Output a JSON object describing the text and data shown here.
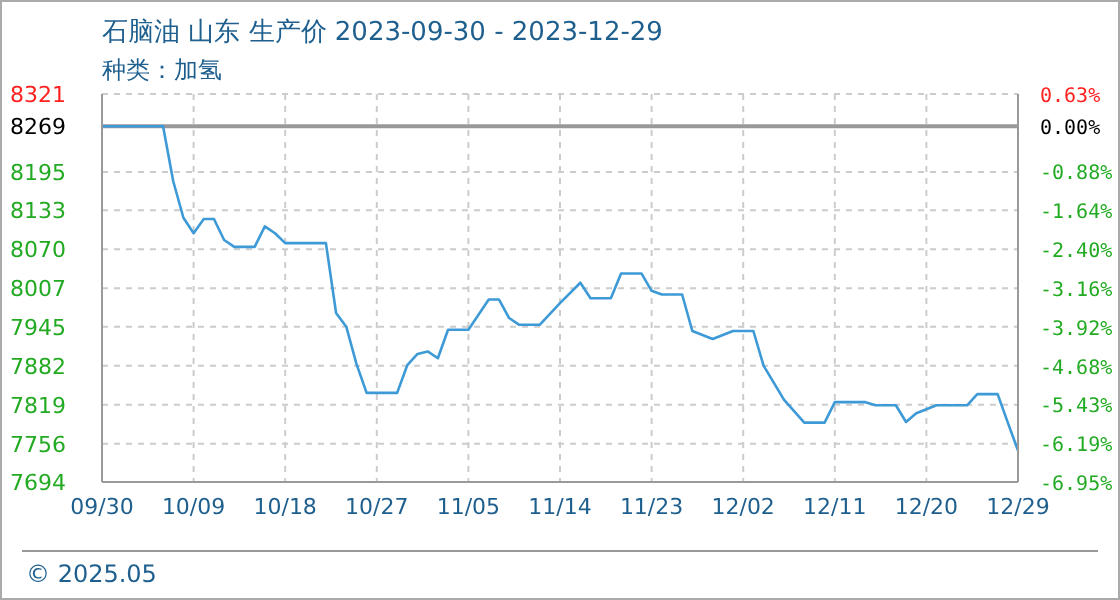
{
  "chart_data": {
    "type": "line",
    "title": "石脑油 山东 生产价 2023-09-30 - 2023-12-29",
    "subtitle": "种类：加氢",
    "annotations": [
      "© 2025.05"
    ],
    "x": [
      "2023-09-30",
      "2023-10-06",
      "2023-10-07",
      "2023-10-08",
      "2023-10-09",
      "2023-10-10",
      "2023-10-11",
      "2023-10-12",
      "2023-10-13",
      "2023-10-15",
      "2023-10-16",
      "2023-10-17",
      "2023-10-18",
      "2023-10-22",
      "2023-10-23",
      "2023-10-24",
      "2023-10-25",
      "2023-10-26",
      "2023-10-29",
      "2023-10-30",
      "2023-10-31",
      "2023-11-01",
      "2023-11-02",
      "2023-11-03",
      "2023-11-05",
      "2023-11-07",
      "2023-11-08",
      "2023-11-09",
      "2023-11-10",
      "2023-11-12",
      "2023-11-14",
      "2023-11-16",
      "2023-11-17",
      "2023-11-19",
      "2023-11-20",
      "2023-11-22",
      "2023-11-23",
      "2023-11-24",
      "2023-11-26",
      "2023-11-27",
      "2023-11-29",
      "2023-12-01",
      "2023-12-03",
      "2023-12-04",
      "2023-12-06",
      "2023-12-08",
      "2023-12-10",
      "2023-12-11",
      "2023-12-14",
      "2023-12-15",
      "2023-12-17",
      "2023-12-18",
      "2023-12-19",
      "2023-12-21",
      "2023-12-24",
      "2023-12-25",
      "2023-12-27",
      "2023-12-28",
      "2023-12-29"
    ],
    "series": [
      {
        "color": "#3d9ad6",
        "values": [
          8269,
          8269,
          8180,
          8121,
          8096,
          8119,
          8119,
          8085,
          8074,
          8074,
          8107,
          8096,
          8080,
          8080,
          7967,
          7945,
          7885,
          7838,
          7838,
          7883,
          7901,
          7905,
          7894,
          7940,
          7940,
          7989,
          7989,
          7959,
          7948,
          7948,
          7983,
          8016,
          7991,
          7991,
          8031,
          8031,
          8003,
          7997,
          7997,
          7938,
          7925,
          7938,
          7938,
          7882,
          7827,
          7790,
          7790,
          7823,
          7823,
          7818,
          7818,
          7791,
          7805,
          7818,
          7818,
          7836,
          7836,
          7790,
          7745
        ]
      }
    ],
    "xlim": [
      "2023-09-30",
      "2023-12-29"
    ],
    "xticks": [
      {
        "value": "2023-09-30",
        "label": "09/30"
      },
      {
        "value": "2023-10-09",
        "label": "10/09"
      },
      {
        "value": "2023-10-18",
        "label": "10/18"
      },
      {
        "value": "2023-10-27",
        "label": "10/27"
      },
      {
        "value": "2023-11-05",
        "label": "11/05"
      },
      {
        "value": "2023-11-14",
        "label": "11/14"
      },
      {
        "value": "2023-11-23",
        "label": "11/23"
      },
      {
        "value": "2023-12-02",
        "label": "12/02"
      },
      {
        "value": "2023-12-11",
        "label": "12/11"
      },
      {
        "value": "2023-12-20",
        "label": "12/20"
      },
      {
        "value": "2023-12-29",
        "label": "12/29"
      }
    ],
    "ylim": [
      7694,
      8321
    ],
    "yticks": [
      7694,
      7756,
      7819,
      7882,
      7945,
      8007,
      8070,
      8133,
      8195,
      8269,
      8321
    ],
    "y2lim": [
      -6.95,
      0.63
    ],
    "y2ticks": [
      {
        "value": -6.95,
        "label": "-6.95%"
      },
      {
        "value": -6.19,
        "label": "-6.19%"
      },
      {
        "value": -5.43,
        "label": "-5.43%"
      },
      {
        "value": -4.68,
        "label": "-4.68%"
      },
      {
        "value": -3.92,
        "label": "-3.92%"
      },
      {
        "value": -3.16,
        "label": "-3.16%"
      },
      {
        "value": -2.4,
        "label": "-2.40%"
      },
      {
        "value": -1.64,
        "label": "-1.64%"
      },
      {
        "value": -0.88,
        "label": "-0.88%"
      },
      {
        "value": 0,
        "label": "0.00%"
      },
      {
        "value": 0.63,
        "label": "0.63%"
      }
    ],
    "ref_lines": [
      {
        "axis": "y",
        "value": 8269,
        "color": "#999999"
      }
    ],
    "grid": true,
    "marker": "none",
    "line_style": "solid"
  }
}
